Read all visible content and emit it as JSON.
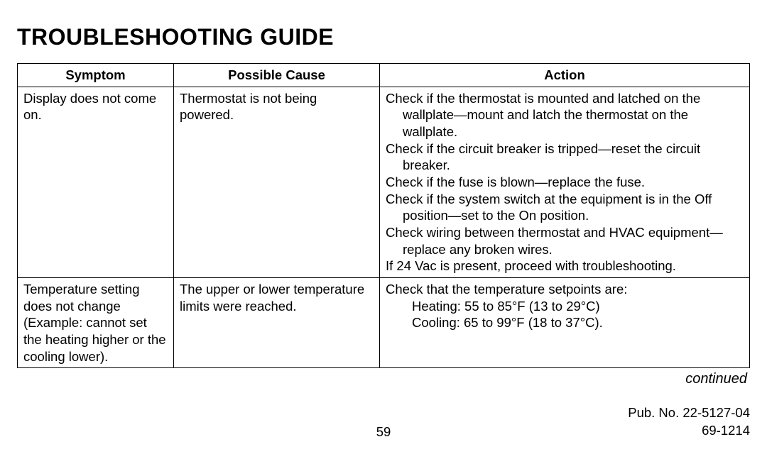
{
  "title": "TROUBLESHOOTING GUIDE",
  "table": {
    "headers": {
      "symptom": "Symptom",
      "cause": "Possible Cause",
      "action": "Action"
    },
    "rows": [
      {
        "symptom": "Display does not come on.",
        "cause": "Thermostat is not being powered.",
        "action_lines": [
          "Check if the thermostat is mounted and latched on the wallplate—mount and latch the thermostat on the wallplate.",
          "Check if the circuit breaker is tripped—reset the circuit breaker.",
          "Check if the fuse is blown—replace the fuse.",
          "Check if the system switch at the equipment is in the Off position—set to the On position.",
          "Check wiring between thermostat and HVAC equipment—replace any broken wires.",
          "If 24 Vac is present, proceed with troubleshooting."
        ]
      },
      {
        "symptom": "Temperature setting does not change (Example: cannot set the heating higher or the cooling lower).",
        "cause": "The upper or lower temperature limits were reached.",
        "action_lines": [
          "Check that the temperature setpoints are:",
          "  Heating: 55 to 85°F (13 to 29°C)",
          "  Cooling: 65 to 99°F (18 to 37°C)."
        ]
      }
    ]
  },
  "continued": "continued",
  "footer": {
    "page": "59",
    "pubno": "Pub. No. 22-5127-04",
    "docno": "69-1214"
  }
}
